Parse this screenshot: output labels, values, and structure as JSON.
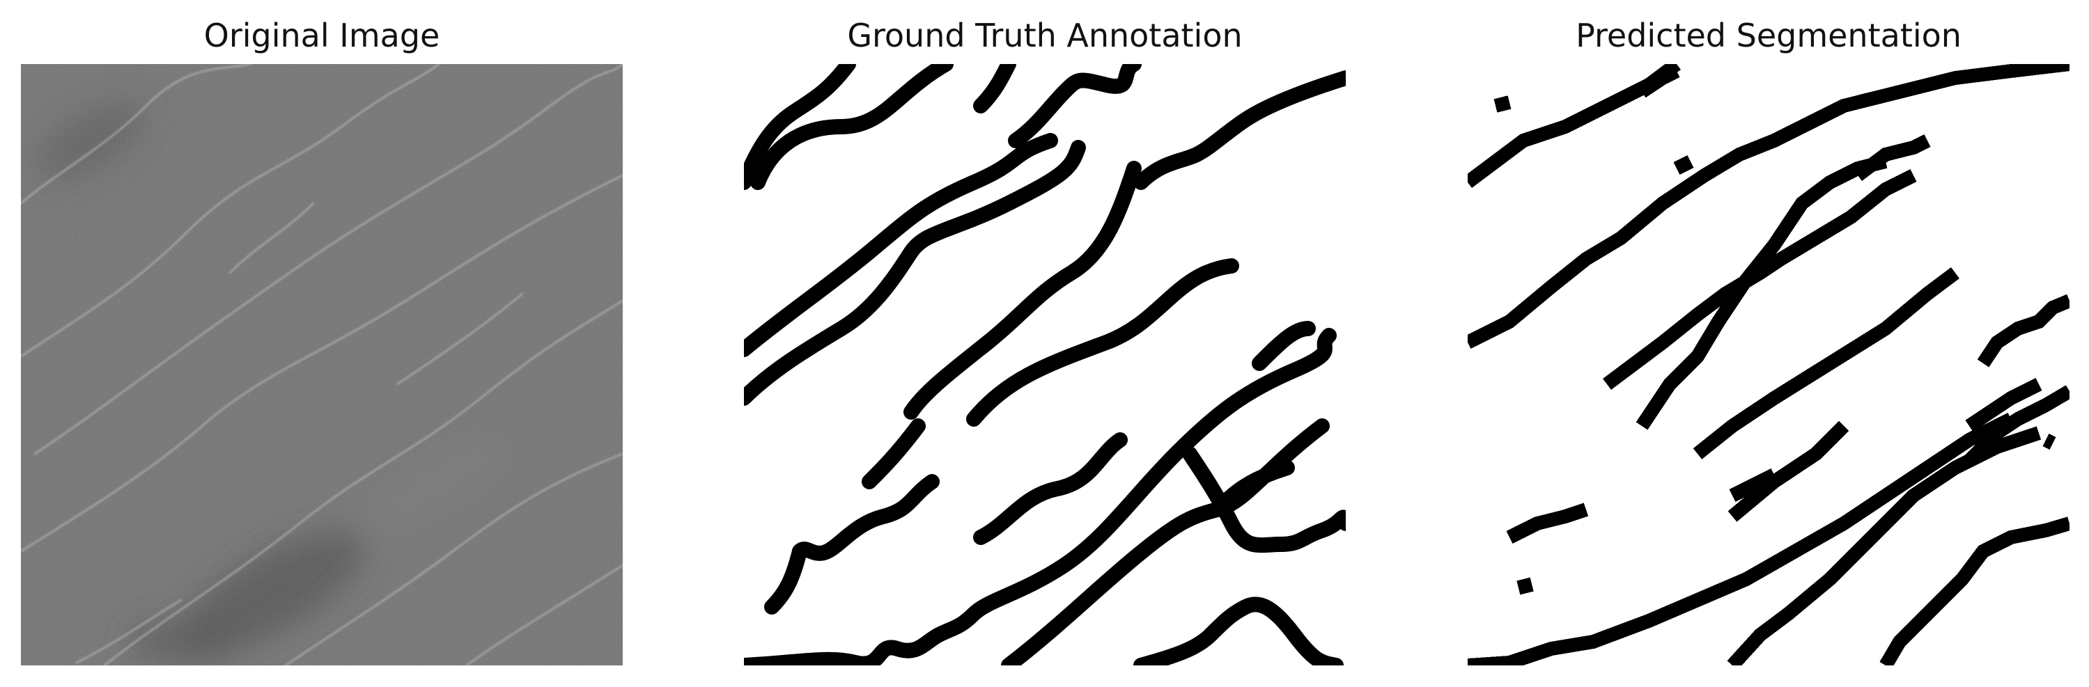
{
  "panels": [
    {
      "title": "Original Image",
      "kind": "grayscale-texture",
      "base_color": "#6d6d6d"
    },
    {
      "title": "Ground Truth Annotation",
      "kind": "binary-mask-smooth"
    },
    {
      "title": "Predicted Segmentation",
      "kind": "binary-mask-blocky"
    }
  ]
}
